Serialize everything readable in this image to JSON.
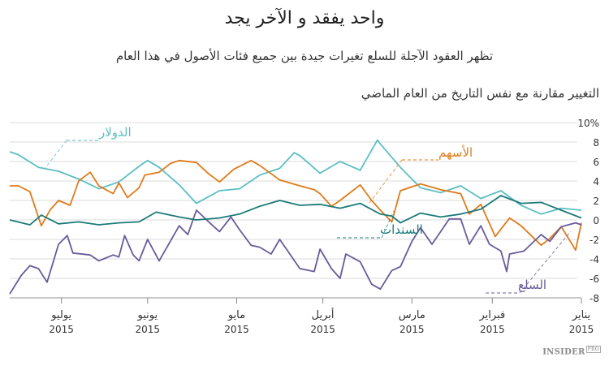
{
  "header": {
    "title": "واحد يفقد و الآخر يجد",
    "subtitle": "تظهر العقود الآجلة للسلع تغيرات جيدة بين جميع فئات الأصول في هذا العام",
    "y_axis_title": "التغيير مقارنة مع نفس التاريخ من العام الماضي"
  },
  "logo": {
    "text": "INSIDER",
    "badge": "PRO"
  },
  "chart_data": {
    "type": "line",
    "title": "واحد يفقد و الآخر يجد",
    "ylabel": "التغيير مقارنة مع نفس التاريخ من العام الماضي",
    "ylim": [
      -8,
      10
    ],
    "yticks": [
      "10%",
      "8",
      "6",
      "4",
      "2",
      "0",
      "-2",
      "-4",
      "-6",
      "-8"
    ],
    "xlim": [
      "2015-01-01",
      "2015-07-19"
    ],
    "x_direction": "right-to-left",
    "xticks": [
      {
        "date": "2015-01-01",
        "month": "يناير",
        "year": "2015"
      },
      {
        "date": "2015-02-01",
        "month": "فبراير",
        "year": "2015"
      },
      {
        "date": "2015-03-01",
        "month": "مارس",
        "year": "2015"
      },
      {
        "date": "2015-04-01",
        "month": "أبريل",
        "year": "2015"
      },
      {
        "date": "2015-05-01",
        "month": "مايو",
        "year": "2015"
      },
      {
        "date": "2015-06-01",
        "month": "يونيو",
        "year": "2015"
      },
      {
        "date": "2015-07-01",
        "month": "يوليو",
        "year": "2015"
      }
    ],
    "grid": true,
    "series": [
      {
        "name": "الدولار",
        "color": "#5bbfc5",
        "points": [
          [
            "2015-07-19",
            7.0
          ],
          [
            "2015-07-16",
            6.7
          ],
          [
            "2015-07-09",
            5.4
          ],
          [
            "2015-07-02",
            5.0
          ],
          [
            "2015-06-25",
            4.2
          ],
          [
            "2015-06-18",
            3.2
          ],
          [
            "2015-06-11",
            3.9
          ],
          [
            "2015-06-04",
            5.5
          ],
          [
            "2015-06-01",
            6.1
          ],
          [
            "2015-05-28",
            5.4
          ],
          [
            "2015-05-21",
            3.6
          ],
          [
            "2015-05-15",
            1.7
          ],
          [
            "2015-05-07",
            3.0
          ],
          [
            "2015-04-30",
            3.2
          ],
          [
            "2015-04-23",
            4.6
          ],
          [
            "2015-04-16",
            5.3
          ],
          [
            "2015-04-11",
            6.9
          ],
          [
            "2015-04-09",
            6.6
          ],
          [
            "2015-04-02",
            4.8
          ],
          [
            "2015-03-26",
            6.0
          ],
          [
            "2015-03-19",
            5.1
          ],
          [
            "2015-03-13",
            8.2
          ],
          [
            "2015-03-12",
            7.8
          ],
          [
            "2015-03-05",
            5.4
          ],
          [
            "2015-02-26",
            3.3
          ],
          [
            "2015-02-19",
            2.8
          ],
          [
            "2015-02-12",
            3.5
          ],
          [
            "2015-02-05",
            2.2
          ],
          [
            "2015-01-29",
            3.0
          ],
          [
            "2015-01-22",
            1.5
          ],
          [
            "2015-01-15",
            0.6
          ],
          [
            "2015-01-08",
            1.2
          ],
          [
            "2015-01-01",
            1.0
          ]
        ]
      },
      {
        "name": "الأسهم",
        "color": "#e07b1a",
        "points": [
          [
            "2015-07-19",
            3.5
          ],
          [
            "2015-07-16",
            3.5
          ],
          [
            "2015-07-12",
            2.9
          ],
          [
            "2015-07-08",
            -0.6
          ],
          [
            "2015-07-05",
            1.0
          ],
          [
            "2015-07-02",
            2.0
          ],
          [
            "2015-06-28",
            1.5
          ],
          [
            "2015-06-25",
            4.0
          ],
          [
            "2015-06-21",
            4.9
          ],
          [
            "2015-06-18",
            3.5
          ],
          [
            "2015-06-13",
            2.7
          ],
          [
            "2015-06-11",
            3.8
          ],
          [
            "2015-06-08",
            2.3
          ],
          [
            "2015-06-04",
            3.3
          ],
          [
            "2015-06-02",
            4.6
          ],
          [
            "2015-05-28",
            4.9
          ],
          [
            "2015-05-24",
            5.8
          ],
          [
            "2015-05-21",
            6.1
          ],
          [
            "2015-05-15",
            5.9
          ],
          [
            "2015-05-11",
            4.8
          ],
          [
            "2015-05-07",
            3.9
          ],
          [
            "2015-05-02",
            5.2
          ],
          [
            "2015-04-26",
            6.1
          ],
          [
            "2015-04-23",
            5.6
          ],
          [
            "2015-04-16",
            4.1
          ],
          [
            "2015-04-09",
            3.5
          ],
          [
            "2015-04-04",
            3.1
          ],
          [
            "2015-04-02",
            2.7
          ],
          [
            "2015-03-29",
            1.4
          ],
          [
            "2015-03-26",
            2.0
          ],
          [
            "2015-03-19",
            3.6
          ],
          [
            "2015-03-15",
            2.0
          ],
          [
            "2015-03-12",
            1.0
          ],
          [
            "2015-03-08",
            -0.2
          ],
          [
            "2015-03-05",
            3.0
          ],
          [
            "2015-02-26",
            3.7
          ],
          [
            "2015-02-19",
            3.1
          ],
          [
            "2015-02-12",
            2.7
          ],
          [
            "2015-02-09",
            0.6
          ],
          [
            "2015-02-05",
            1.6
          ],
          [
            "2015-01-31",
            -1.7
          ],
          [
            "2015-01-26",
            0.2
          ],
          [
            "2015-01-22",
            -0.6
          ],
          [
            "2015-01-15",
            -2.6
          ],
          [
            "2015-01-12",
            -1.9
          ],
          [
            "2015-01-08",
            -0.7
          ],
          [
            "2015-01-03",
            -3.1
          ],
          [
            "2015-01-01",
            -0.3
          ]
        ]
      },
      {
        "name": "السندات",
        "color": "#1b7a78",
        "points": [
          [
            "2015-07-19",
            0.0
          ],
          [
            "2015-07-12",
            -0.5
          ],
          [
            "2015-07-08",
            0.5
          ],
          [
            "2015-07-02",
            -0.4
          ],
          [
            "2015-06-25",
            -0.2
          ],
          [
            "2015-06-18",
            -0.5
          ],
          [
            "2015-06-11",
            -0.3
          ],
          [
            "2015-06-04",
            -0.2
          ],
          [
            "2015-05-29",
            0.8
          ],
          [
            "2015-05-21",
            0.3
          ],
          [
            "2015-05-15",
            0.0
          ],
          [
            "2015-05-07",
            0.2
          ],
          [
            "2015-04-30",
            0.6
          ],
          [
            "2015-04-23",
            1.4
          ],
          [
            "2015-04-16",
            2.0
          ],
          [
            "2015-04-09",
            1.5
          ],
          [
            "2015-04-02",
            1.6
          ],
          [
            "2015-03-26",
            1.2
          ],
          [
            "2015-03-19",
            1.7
          ],
          [
            "2015-03-12",
            0.6
          ],
          [
            "2015-03-08",
            0.4
          ],
          [
            "2015-03-05",
            -0.3
          ],
          [
            "2015-02-26",
            0.7
          ],
          [
            "2015-02-19",
            0.3
          ],
          [
            "2015-02-12",
            0.6
          ],
          [
            "2015-02-05",
            1.1
          ],
          [
            "2015-01-29",
            2.5
          ],
          [
            "2015-01-22",
            1.7
          ],
          [
            "2015-01-15",
            1.8
          ],
          [
            "2015-01-08",
            1.0
          ],
          [
            "2015-01-01",
            0.2
          ]
        ]
      },
      {
        "name": "السلع",
        "color": "#6a5b9a",
        "points": [
          [
            "2015-07-19",
            -7.6
          ],
          [
            "2015-07-15",
            -5.7
          ],
          [
            "2015-07-12",
            -4.7
          ],
          [
            "2015-07-09",
            -5.0
          ],
          [
            "2015-07-06",
            -6.4
          ],
          [
            "2015-07-02",
            -2.5
          ],
          [
            "2015-06-29",
            -1.6
          ],
          [
            "2015-06-27",
            -3.4
          ],
          [
            "2015-06-21",
            -3.6
          ],
          [
            "2015-06-18",
            -4.2
          ],
          [
            "2015-06-13",
            -3.6
          ],
          [
            "2015-06-11",
            -3.8
          ],
          [
            "2015-06-09",
            -1.6
          ],
          [
            "2015-06-06",
            -3.6
          ],
          [
            "2015-06-04",
            -4.2
          ],
          [
            "2015-06-01",
            -2.0
          ],
          [
            "2015-05-28",
            -4.2
          ],
          [
            "2015-05-21",
            -0.6
          ],
          [
            "2015-05-18",
            -1.5
          ],
          [
            "2015-05-15",
            1.0
          ],
          [
            "2015-05-10",
            -0.4
          ],
          [
            "2015-05-07",
            -1.2
          ],
          [
            "2015-05-03",
            0.3
          ],
          [
            "2015-04-30",
            -1.0
          ],
          [
            "2015-04-26",
            -2.6
          ],
          [
            "2015-04-23",
            -2.8
          ],
          [
            "2015-04-19",
            -3.5
          ],
          [
            "2015-04-16",
            -2.0
          ],
          [
            "2015-04-09",
            -5.0
          ],
          [
            "2015-04-04",
            -5.3
          ],
          [
            "2015-04-02",
            -3.0
          ],
          [
            "2015-03-29",
            -5.0
          ],
          [
            "2015-03-26",
            -6.0
          ],
          [
            "2015-03-24",
            -3.5
          ],
          [
            "2015-03-19",
            -4.3
          ],
          [
            "2015-03-15",
            -6.6
          ],
          [
            "2015-03-12",
            -7.1
          ],
          [
            "2015-03-08",
            -5.2
          ],
          [
            "2015-03-05",
            -4.8
          ],
          [
            "2015-03-01",
            -2.2
          ],
          [
            "2015-02-26",
            -0.8
          ],
          [
            "2015-02-22",
            -2.5
          ],
          [
            "2015-02-19",
            -1.2
          ],
          [
            "2015-02-16",
            0.1
          ],
          [
            "2015-02-12",
            0.1
          ],
          [
            "2015-02-09",
            -2.5
          ],
          [
            "2015-02-05",
            -0.6
          ],
          [
            "2015-02-02",
            -2.5
          ],
          [
            "2015-01-29",
            -3.2
          ],
          [
            "2015-01-27",
            -5.3
          ],
          [
            "2015-01-26",
            -3.5
          ],
          [
            "2015-01-21",
            -3.2
          ],
          [
            "2015-01-15",
            -1.5
          ],
          [
            "2015-01-12",
            -2.2
          ],
          [
            "2015-01-08",
            -0.7
          ],
          [
            "2015-01-03",
            -0.3
          ],
          [
            "2015-01-01",
            -0.5
          ]
        ]
      }
    ]
  }
}
